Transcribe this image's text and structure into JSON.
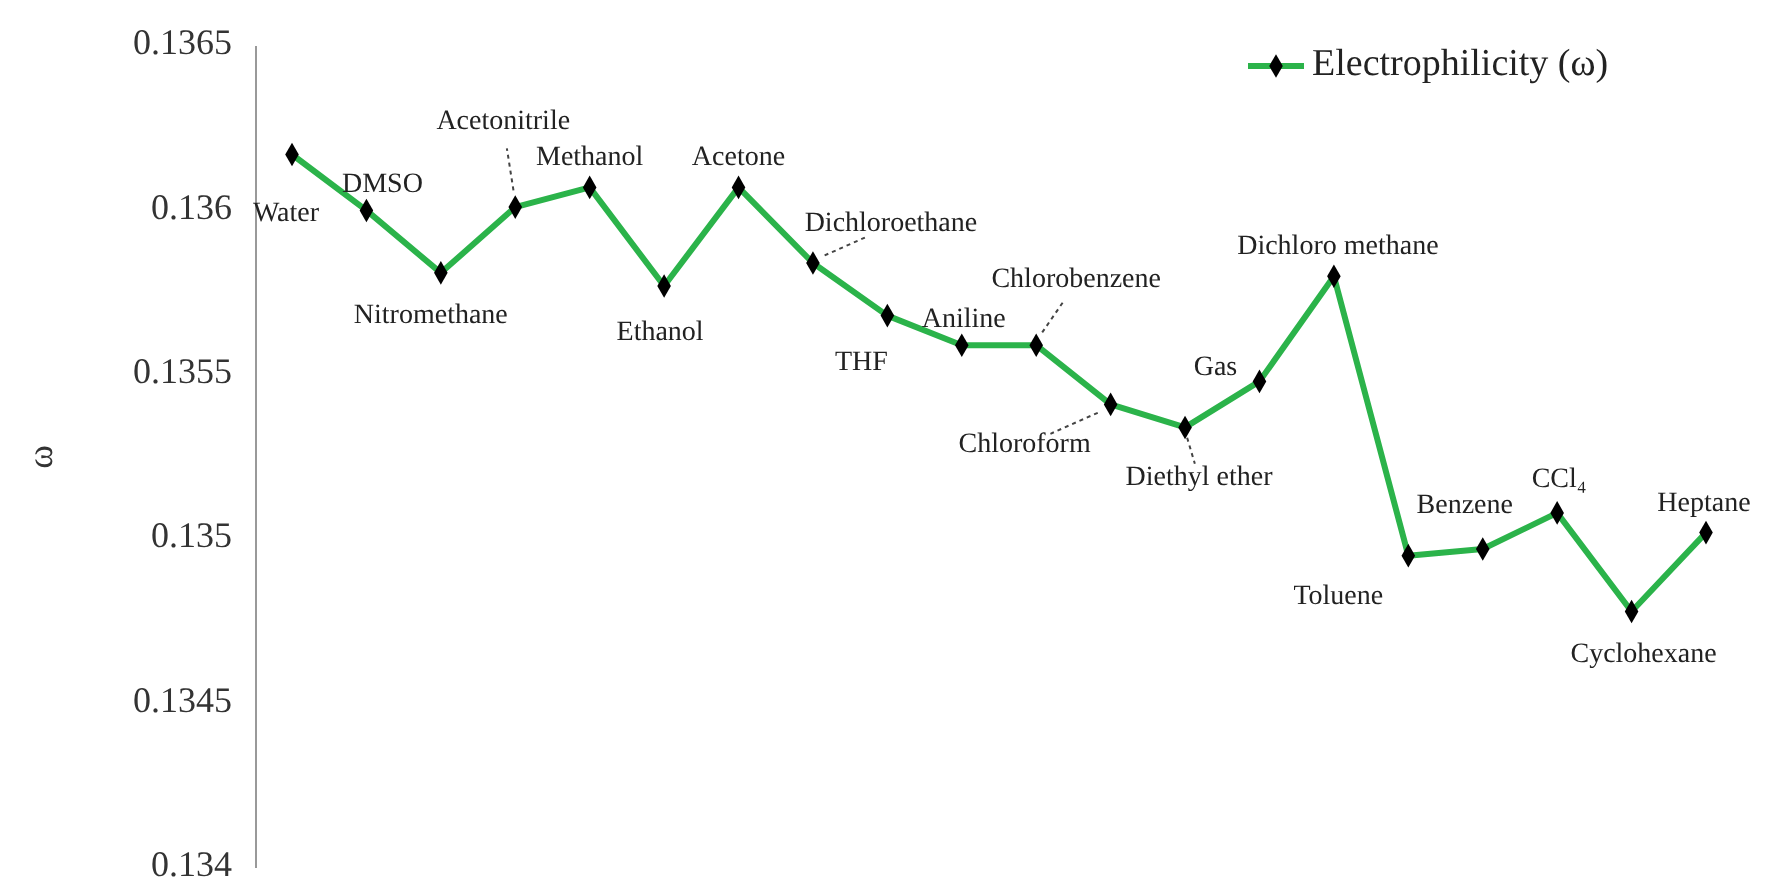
{
  "chart_data": {
    "type": "line",
    "ylabel": "ω",
    "categories": [
      null,
      null,
      null,
      null,
      null,
      null,
      null,
      null,
      null,
      null,
      null,
      null,
      null,
      null,
      null,
      null,
      null,
      null,
      null,
      null
    ],
    "series": [
      {
        "name": "Electrophilicity (ω)",
        "color": "#2bb34a",
        "values": [
          0.13617,
          0.136,
          0.13581,
          0.13601,
          0.13607,
          0.13577,
          0.13607,
          0.13584,
          0.13568,
          0.13559,
          0.13559,
          0.13541,
          0.13534,
          0.13548,
          0.1358,
          0.13495,
          0.13497,
          0.13508,
          0.13478,
          0.13502
        ]
      }
    ],
    "annotations": [
      "Water",
      "DMSO",
      "Nitromethane",
      "Acetonitrile",
      "Methanol",
      "Ethanol",
      "Acetone",
      "Dichloroethane",
      "THF",
      "Aniline",
      "Chlorobenzene",
      "Chloroform",
      "Diethyl ether",
      "Gas",
      "Dichloro methane",
      "Toluene",
      "Benzene",
      "CCl₄",
      "Cyclohexane",
      "Heptane"
    ],
    "ylim": [
      0.134,
      0.1365
    ],
    "yticks": [
      0.134,
      0.1345,
      0.135,
      0.1355,
      0.136,
      0.1365
    ],
    "tick_labels": "y",
    "grid": false,
    "legend": "top right",
    "marker": "diamond",
    "line_style": "solid"
  }
}
